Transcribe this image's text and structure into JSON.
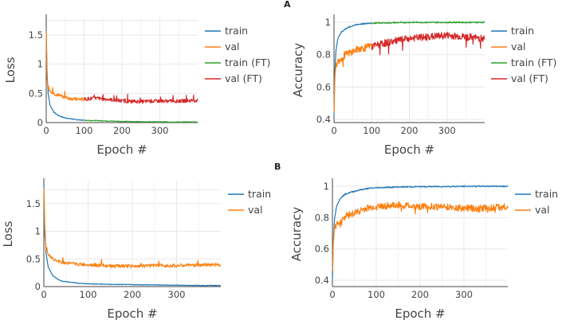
{
  "panels": [
    {
      "label": "A"
    },
    {
      "label": "B"
    }
  ],
  "chart_data": [
    {
      "type": "line",
      "panel": "A",
      "xlabel": "Epoch #",
      "ylabel": "Loss",
      "xlim": [
        0,
        400
      ],
      "ylim": [
        0,
        1.8
      ],
      "xticks": [
        "0",
        "100",
        "200",
        "300"
      ],
      "yticks": [
        "0",
        "0.5",
        "1",
        "1.5"
      ],
      "grid": true,
      "legend": "right",
      "series": [
        {
          "name": "train",
          "color": "#1f77b4",
          "x": [
            0,
            2,
            5,
            10,
            20,
            30,
            40,
            50,
            60,
            70,
            80,
            90,
            100
          ],
          "y": [
            1.6,
            0.9,
            0.5,
            0.3,
            0.18,
            0.13,
            0.1,
            0.08,
            0.07,
            0.06,
            0.05,
            0.045,
            0.04
          ]
        },
        {
          "name": "val",
          "color": "#ff7f0e",
          "x": [
            0,
            2,
            5,
            10,
            20,
            30,
            40,
            50,
            60,
            70,
            80,
            90,
            100
          ],
          "y": [
            1.55,
            0.75,
            0.6,
            0.55,
            0.5,
            0.47,
            0.45,
            0.43,
            0.42,
            0.41,
            0.4,
            0.4,
            0.4
          ]
        },
        {
          "name": "train (FT)",
          "color": "#2ca02c",
          "x": [
            100,
            150,
            200,
            250,
            300,
            350,
            400
          ],
          "y": [
            0.04,
            0.03,
            0.02,
            0.015,
            0.012,
            0.01,
            0.01
          ]
        },
        {
          "name": "val (FT)",
          "color": "#d62728",
          "x": [
            100,
            130,
            160,
            200,
            250,
            300,
            350,
            400
          ],
          "y": [
            0.4,
            0.42,
            0.4,
            0.37,
            0.36,
            0.37,
            0.37,
            0.38
          ]
        }
      ]
    },
    {
      "type": "line",
      "panel": "A",
      "xlabel": "Epoch #",
      "ylabel": "Accuracy",
      "xlim": [
        0,
        400
      ],
      "ylim": [
        0.38,
        1.03
      ],
      "xticks": [
        "0",
        "100",
        "200",
        "300"
      ],
      "yticks": [
        "0.4",
        "0.6",
        "0.8",
        "1"
      ],
      "grid": true,
      "legend": "right",
      "series": [
        {
          "name": "train",
          "color": "#1f77b4",
          "x": [
            0,
            2,
            5,
            10,
            20,
            30,
            40,
            50,
            60,
            70,
            80,
            90,
            100
          ],
          "y": [
            0.42,
            0.68,
            0.82,
            0.9,
            0.94,
            0.96,
            0.97,
            0.98,
            0.985,
            0.99,
            0.99,
            0.995,
            0.995
          ]
        },
        {
          "name": "val",
          "color": "#ff7f0e",
          "x": [
            0,
            2,
            5,
            10,
            20,
            30,
            40,
            50,
            60,
            70,
            80,
            90,
            100
          ],
          "y": [
            0.45,
            0.65,
            0.72,
            0.76,
            0.78,
            0.8,
            0.81,
            0.82,
            0.83,
            0.84,
            0.84,
            0.85,
            0.85
          ]
        },
        {
          "name": "train (FT)",
          "color": "#2ca02c",
          "x": [
            100,
            200,
            300,
            400
          ],
          "y": [
            0.995,
            1.0,
            1.0,
            1.0
          ]
        },
        {
          "name": "val (FT)",
          "color": "#d62728",
          "x": [
            100,
            150,
            200,
            250,
            300,
            350,
            400
          ],
          "y": [
            0.85,
            0.88,
            0.9,
            0.91,
            0.92,
            0.91,
            0.9
          ]
        }
      ]
    },
    {
      "type": "line",
      "panel": "B",
      "xlabel": "Epoch #",
      "ylabel": "Loss",
      "xlim": [
        0,
        400
      ],
      "ylim": [
        0,
        1.9
      ],
      "xticks": [
        "0",
        "100",
        "200",
        "300"
      ],
      "yticks": [
        "0",
        "0.5",
        "1",
        "1.5"
      ],
      "grid": true,
      "legend": "right",
      "series": [
        {
          "name": "train",
          "color": "#1f77b4",
          "x": [
            0,
            2,
            5,
            10,
            20,
            30,
            40,
            60,
            80,
            100,
            150,
            200,
            250,
            300,
            350,
            400
          ],
          "y": [
            1.85,
            1.1,
            0.6,
            0.35,
            0.2,
            0.14,
            0.1,
            0.08,
            0.06,
            0.05,
            0.04,
            0.035,
            0.03,
            0.025,
            0.02,
            0.02
          ]
        },
        {
          "name": "val",
          "color": "#ff7f0e",
          "x": [
            0,
            2,
            5,
            10,
            20,
            30,
            40,
            60,
            80,
            100,
            150,
            200,
            250,
            300,
            350,
            400
          ],
          "y": [
            1.8,
            0.9,
            0.7,
            0.58,
            0.5,
            0.46,
            0.44,
            0.42,
            0.4,
            0.4,
            0.37,
            0.37,
            0.38,
            0.38,
            0.39,
            0.4
          ]
        }
      ]
    },
    {
      "type": "line",
      "panel": "B",
      "xlabel": "Epoch #",
      "ylabel": "Accuracy",
      "xlim": [
        0,
        400
      ],
      "ylim": [
        0.36,
        1.03
      ],
      "xticks": [
        "0",
        "100",
        "200",
        "300"
      ],
      "yticks": [
        "0.4",
        "0.6",
        "0.8",
        "1"
      ],
      "grid": true,
      "legend": "right",
      "series": [
        {
          "name": "train",
          "color": "#1f77b4",
          "x": [
            0,
            2,
            5,
            10,
            20,
            30,
            40,
            60,
            80,
            100,
            150,
            200,
            250,
            300,
            350,
            400
          ],
          "y": [
            0.4,
            0.65,
            0.8,
            0.88,
            0.93,
            0.95,
            0.96,
            0.975,
            0.985,
            0.99,
            0.995,
            0.997,
            0.998,
            0.999,
            1.0,
            1.0
          ]
        },
        {
          "name": "val",
          "color": "#ff7f0e",
          "x": [
            0,
            2,
            5,
            10,
            20,
            30,
            40,
            60,
            80,
            100,
            150,
            200,
            250,
            300,
            350,
            400
          ],
          "y": [
            0.45,
            0.66,
            0.72,
            0.76,
            0.79,
            0.81,
            0.82,
            0.84,
            0.86,
            0.87,
            0.88,
            0.87,
            0.87,
            0.86,
            0.86,
            0.87
          ]
        }
      ]
    }
  ]
}
